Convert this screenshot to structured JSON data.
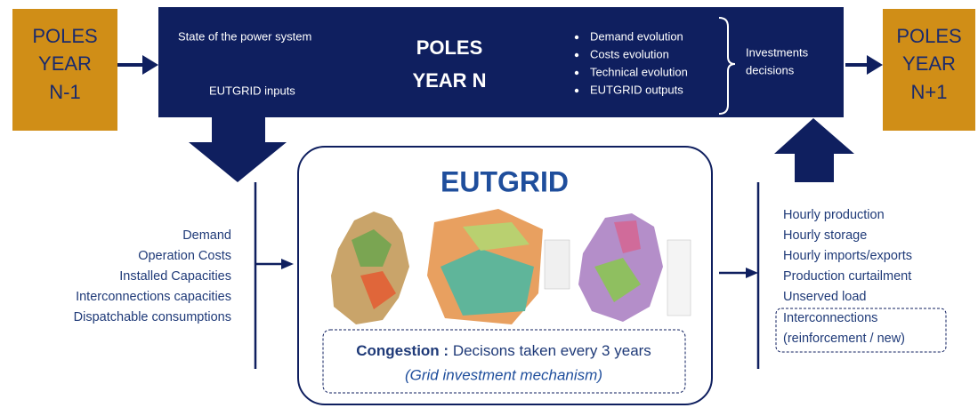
{
  "left_box": {
    "lines": [
      "POLES",
      "YEAR",
      "N-1"
    ]
  },
  "center_box": {
    "state_label": "State of the power system",
    "inputs_label": "EUTGRID inputs",
    "title_lines": [
      "POLES",
      "YEAR N"
    ],
    "bullets": [
      "Demand evolution",
      "Costs evolution",
      "Technical evolution",
      "EUTGRID outputs"
    ],
    "decisions_lines": [
      "Investments",
      "decisions"
    ]
  },
  "right_box": {
    "lines": [
      "POLES",
      "YEAR",
      "N+1"
    ]
  },
  "eutgrid": {
    "title": "EUTGRID",
    "congestion_label": "Congestion :",
    "congestion_text": "Decisons taken every 3 years",
    "mechanism": "(Grid investment mechanism)"
  },
  "inputs": [
    "Demand",
    "Operation Costs",
    "Installed Capacities",
    "Interconnections capacities",
    "Dispatchable consumptions"
  ],
  "outputs": [
    "Hourly production",
    "Hourly storage",
    "Hourly imports/exports",
    "Production curtailment",
    "Unserved load"
  ],
  "outputs_boxed": [
    "Interconnections",
    "(reinforcement / new)"
  ]
}
